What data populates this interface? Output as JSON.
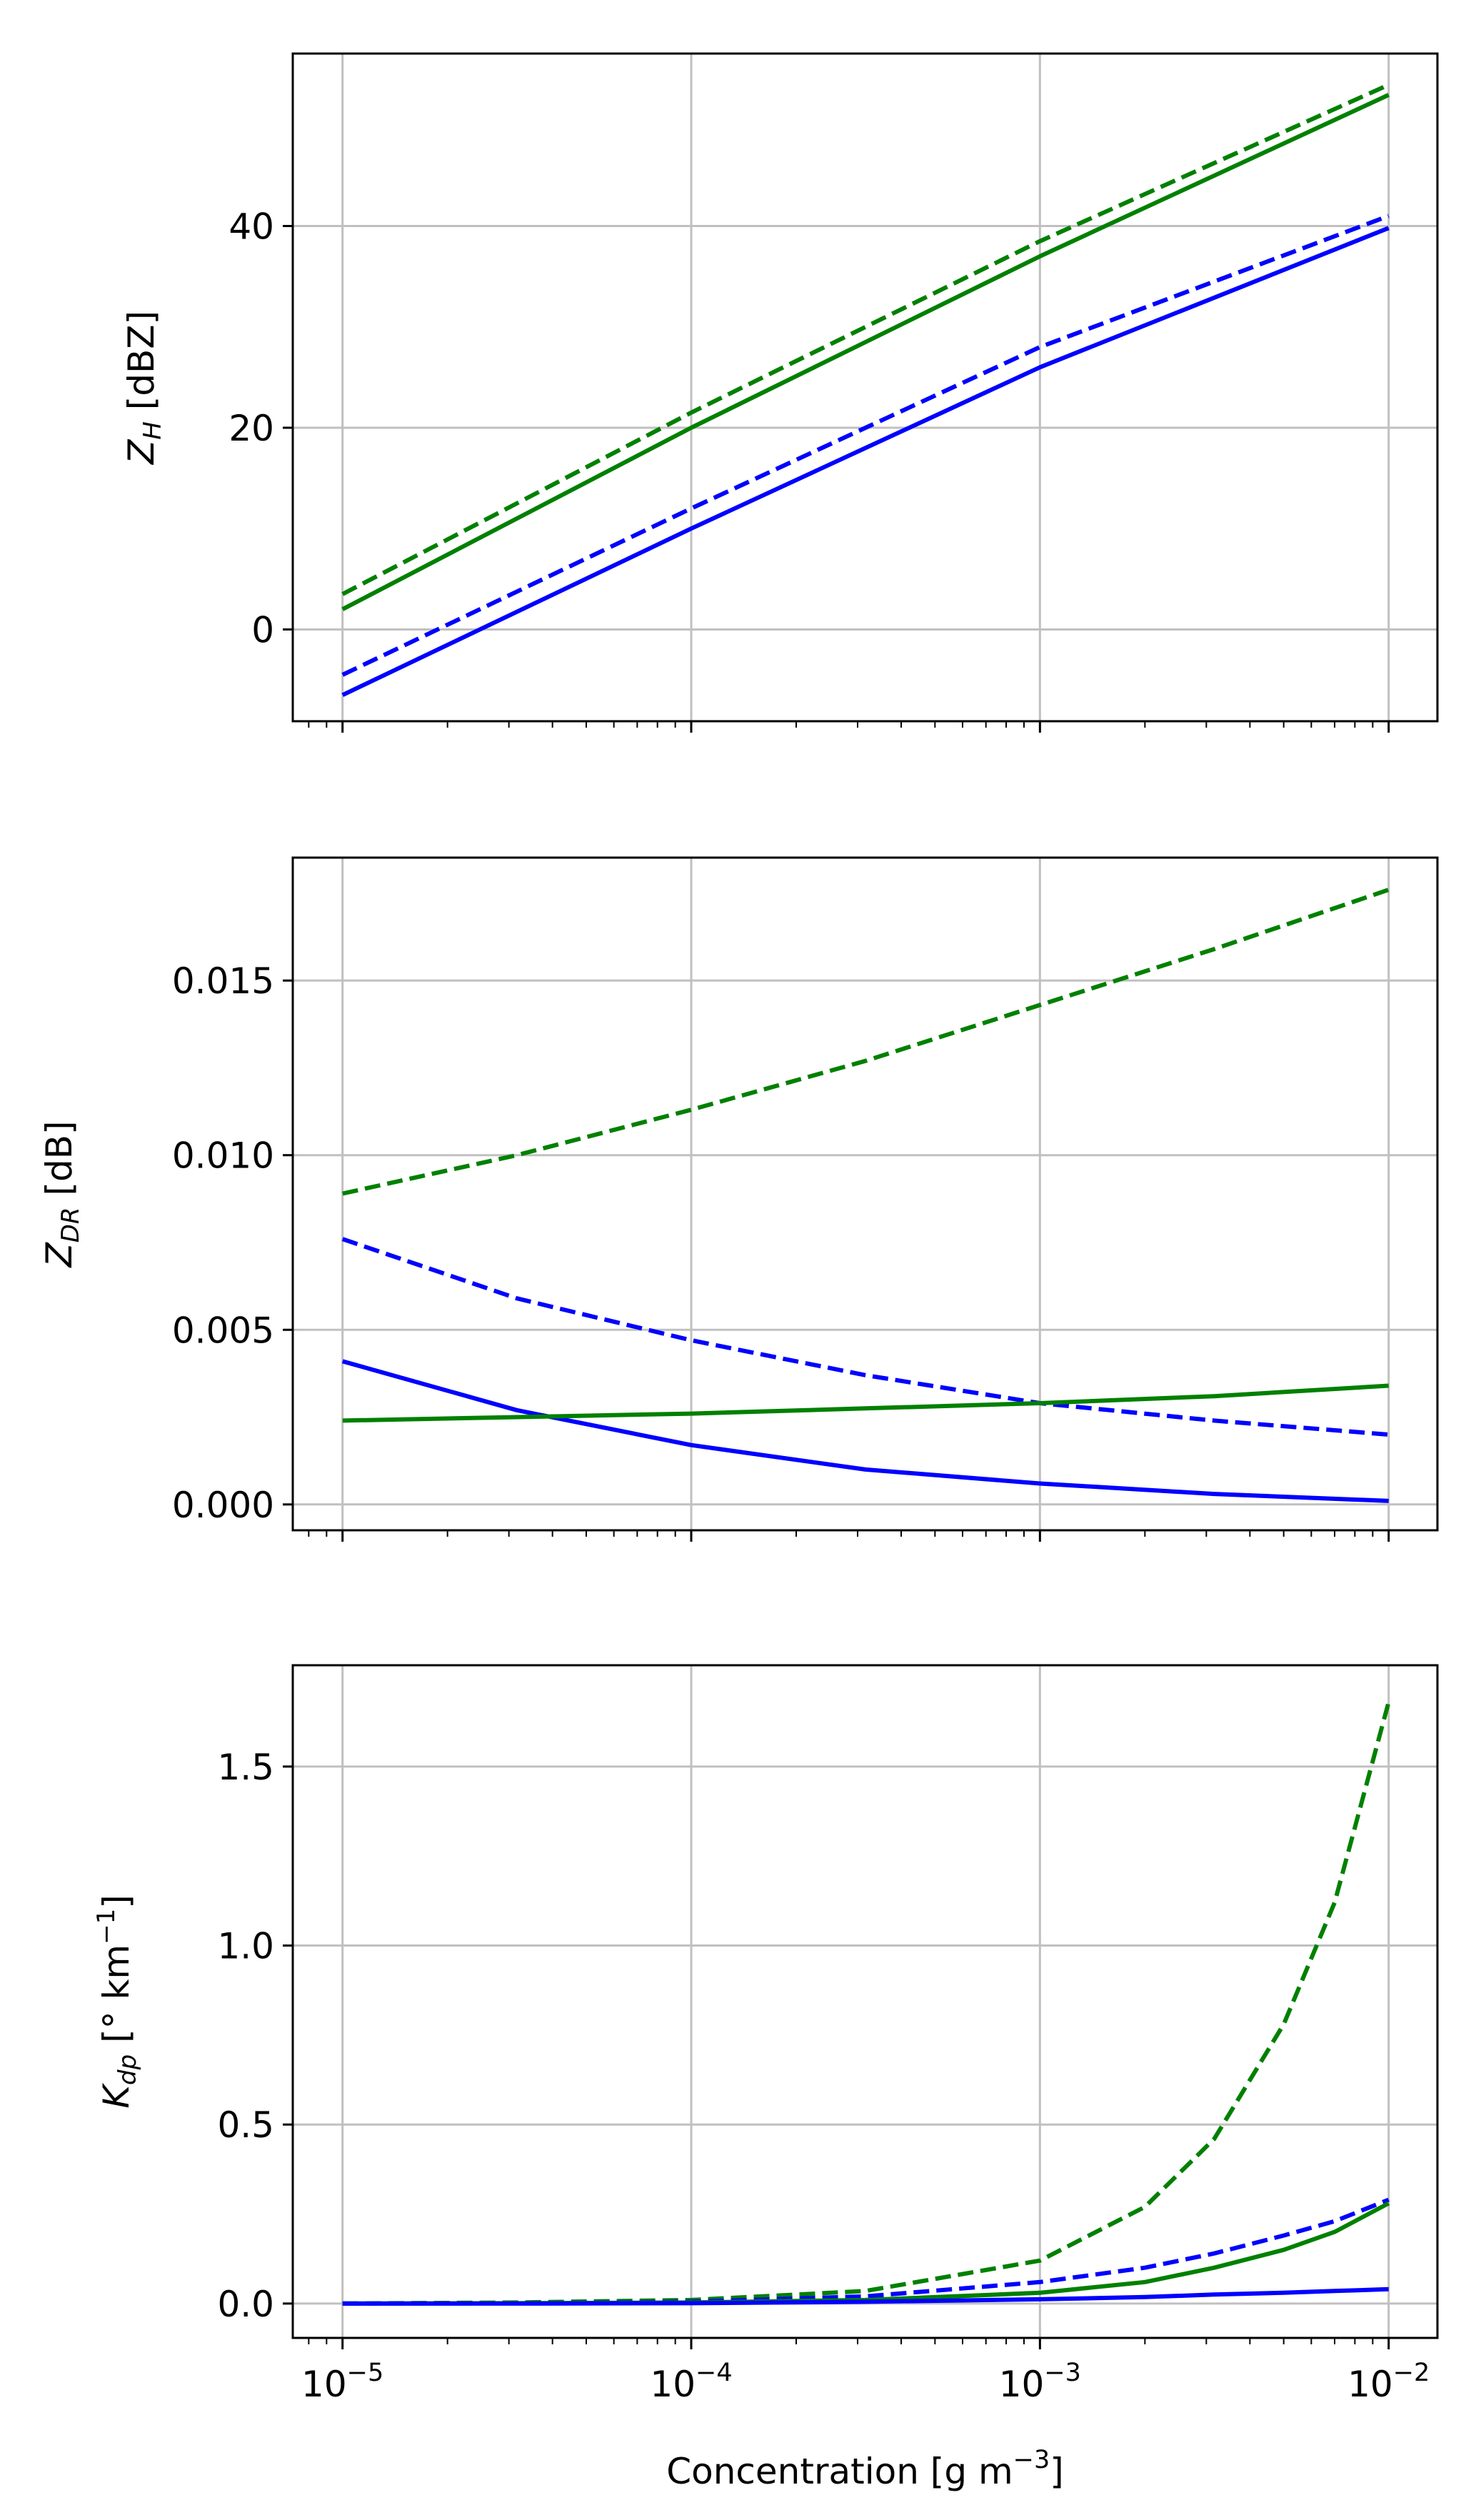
{
  "chart_data": [
    {
      "type": "line",
      "title": "",
      "xscale": "log",
      "xlabel": "Concentration [g m^-3]",
      "ylabel": {
        "main": "Z",
        "sub": "H",
        "unit": " [dBZ]"
      },
      "xlim": [
        7.2e-06,
        0.0138
      ],
      "ylim": [
        -9.1,
        57.1
      ],
      "yticks": [
        0,
        20,
        40
      ],
      "ytick_labels": [
        "0",
        "20",
        "40"
      ],
      "grid": true,
      "x": [
        1e-05,
        0.0001,
        0.001,
        0.01
      ],
      "series": [
        {
          "name": "green dashed",
          "color": "#008000",
          "dash": true,
          "values": [
            3.5,
            21.5,
            38.5,
            54
          ]
        },
        {
          "name": "green solid",
          "color": "#008000",
          "dash": false,
          "values": [
            2,
            20,
            37,
            53
          ]
        },
        {
          "name": "blue dashed",
          "color": "#0000ff",
          "dash": true,
          "values": [
            -4.5,
            12,
            28,
            41
          ]
        },
        {
          "name": "blue solid",
          "color": "#0000ff",
          "dash": false,
          "values": [
            -6.5,
            10,
            26,
            39.8
          ]
        }
      ]
    },
    {
      "type": "line",
      "title": "",
      "xscale": "log",
      "xlabel": "",
      "ylabel": {
        "main": "Z",
        "sub": "DR",
        "unit": " [dB]"
      },
      "xlim": [
        7.2e-06,
        0.0138
      ],
      "ylim": [
        -0.00074,
        0.01852
      ],
      "yticks": [
        0,
        0.005,
        0.01,
        0.015
      ],
      "ytick_labels": [
        "0.000",
        "0.005",
        "0.010",
        "0.015"
      ],
      "grid": true,
      "x": [
        1e-05,
        3.16e-05,
        0.0001,
        0.000316,
        0.001,
        0.00316,
        0.01
      ],
      "series": [
        {
          "name": "green dashed",
          "color": "#008000",
          "dash": true,
          "values": [
            0.0089,
            0.01,
            0.0113,
            0.0127,
            0.0143,
            0.0159,
            0.0176
          ]
        },
        {
          "name": "blue dashed",
          "color": "#0000ff",
          "dash": true,
          "values": [
            0.0076,
            0.0059,
            0.0047,
            0.0037,
            0.0029,
            0.0024,
            0.002
          ]
        },
        {
          "name": "blue solid",
          "color": "#0000ff",
          "dash": false,
          "values": [
            0.0041,
            0.0027,
            0.0017,
            0.001,
            0.0006,
            0.0003,
            0.0001
          ]
        },
        {
          "name": "green solid",
          "color": "#008000",
          "dash": false,
          "values": [
            0.0024,
            0.0025,
            0.0026,
            0.00275,
            0.0029,
            0.0031,
            0.0034
          ]
        }
      ]
    },
    {
      "type": "line",
      "title": "",
      "xscale": "log",
      "xlabel": "Concentration [g m^-3]",
      "ylabel": {
        "main": "K",
        "sub": "dp",
        "unit": " [° km^-1]"
      },
      "xlim": [
        7.2e-06,
        0.0138
      ],
      "ylim": [
        -0.096,
        1.783
      ],
      "yticks": [
        0,
        0.5,
        1.0,
        1.5
      ],
      "ytick_labels": [
        "0.0",
        "0.5",
        "1.0",
        "1.5"
      ],
      "xtick_labels": [
        "10^-5",
        "10^-4",
        "10^-3",
        "10^-2"
      ],
      "grid": true,
      "x": [
        1e-05,
        3.16e-05,
        0.0001,
        0.000316,
        0.001,
        0.002,
        0.00316,
        0.005,
        0.007,
        0.01
      ],
      "series": [
        {
          "name": "green dashed",
          "color": "#008000",
          "dash": true,
          "values": [
            0,
            0.003,
            0.01,
            0.035,
            0.12,
            0.27,
            0.46,
            0.78,
            1.12,
            1.68
          ]
        },
        {
          "name": "blue dashed",
          "color": "#0000ff",
          "dash": true,
          "values": [
            0,
            0.001,
            0.005,
            0.02,
            0.06,
            0.1,
            0.14,
            0.19,
            0.23,
            0.29
          ]
        },
        {
          "name": "green solid",
          "color": "#008000",
          "dash": false,
          "values": [
            0,
            0.001,
            0.003,
            0.01,
            0.03,
            0.06,
            0.1,
            0.15,
            0.2,
            0.28
          ]
        },
        {
          "name": "blue solid",
          "color": "#0000ff",
          "dash": false,
          "values": [
            0,
            0,
            0.001,
            0.005,
            0.012,
            0.018,
            0.025,
            0.03,
            0.035,
            0.04
          ]
        }
      ]
    }
  ]
}
